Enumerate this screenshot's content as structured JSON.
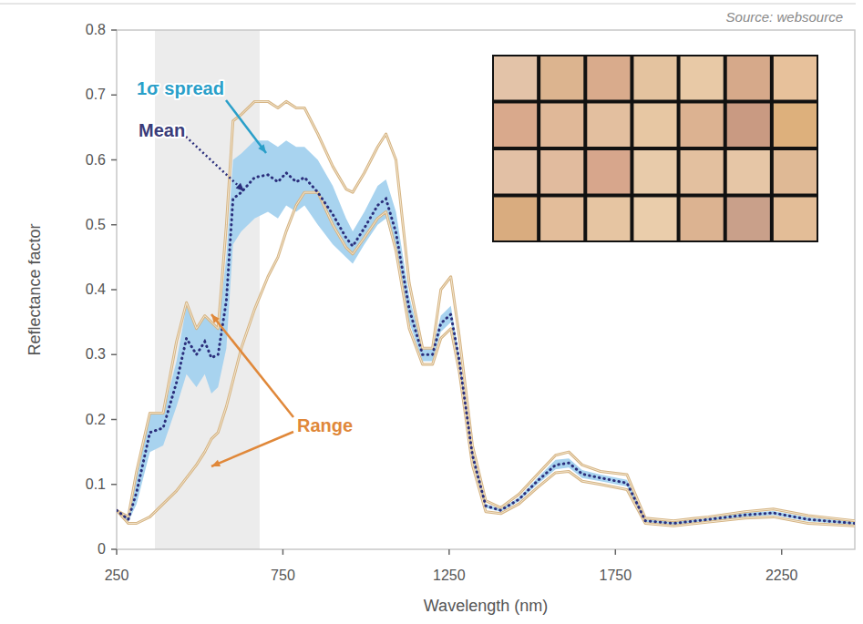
{
  "chart_data": {
    "type": "line",
    "source": "Source: websource",
    "x_label": "Wavelength (nm)",
    "y_label": "Reflectance factor",
    "xlim": [
      250,
      2470
    ],
    "ylim": [
      0,
      0.8
    ],
    "xticks": [
      250,
      750,
      1250,
      1750,
      2250
    ],
    "yticks": [
      0,
      0.1,
      0.2,
      0.3,
      0.4,
      0.5,
      0.6,
      0.7,
      0.8
    ],
    "grid": false,
    "shaded_region": [
      365,
      680
    ],
    "x": [
      250,
      285,
      310,
      350,
      390,
      430,
      460,
      490,
      515,
      535,
      555,
      580,
      600,
      625,
      665,
      705,
      735,
      760,
      790,
      815,
      855,
      900,
      940,
      960,
      995,
      1035,
      1060,
      1090,
      1130,
      1170,
      1200,
      1225,
      1255,
      1280,
      1320,
      1360,
      1405,
      1460,
      1515,
      1570,
      1610,
      1650,
      1705,
      1785,
      1840,
      1925,
      2030,
      2140,
      2225,
      2330,
      2470
    ],
    "series": [
      {
        "name": "Mean",
        "type": "line",
        "line_style": "dotted",
        "color": "#2b2f7c",
        "values": [
          0.06,
          0.046,
          0.088,
          0.18,
          0.187,
          0.257,
          0.325,
          0.3,
          0.32,
          0.295,
          0.3,
          0.383,
          0.54,
          0.55,
          0.573,
          0.577,
          0.566,
          0.58,
          0.566,
          0.573,
          0.55,
          0.516,
          0.48,
          0.467,
          0.495,
          0.53,
          0.54,
          0.488,
          0.37,
          0.3,
          0.3,
          0.348,
          0.362,
          0.292,
          0.145,
          0.067,
          0.06,
          0.077,
          0.105,
          0.13,
          0.133,
          0.116,
          0.11,
          0.102,
          0.044,
          0.04,
          0.046,
          0.053,
          0.056,
          0.046,
          0.04
        ]
      },
      {
        "name": "1σ spread",
        "type": "area",
        "color": "#a8d3ef",
        "upper": [
          0.06,
          0.05,
          0.11,
          0.21,
          0.21,
          0.29,
          0.375,
          0.34,
          0.36,
          0.35,
          0.34,
          0.45,
          0.6,
          0.61,
          0.63,
          0.63,
          0.62,
          0.63,
          0.62,
          0.62,
          0.6,
          0.56,
          0.51,
          0.49,
          0.52,
          0.56,
          0.57,
          0.52,
          0.39,
          0.31,
          0.31,
          0.36,
          0.375,
          0.3,
          0.15,
          0.07,
          0.062,
          0.08,
          0.11,
          0.138,
          0.14,
          0.122,
          0.115,
          0.107,
          0.046,
          0.042,
          0.048,
          0.056,
          0.059,
          0.049,
          0.042
        ],
        "lower": [
          0.06,
          0.042,
          0.07,
          0.15,
          0.16,
          0.22,
          0.27,
          0.25,
          0.27,
          0.24,
          0.25,
          0.31,
          0.47,
          0.49,
          0.51,
          0.52,
          0.51,
          0.53,
          0.52,
          0.53,
          0.5,
          0.47,
          0.45,
          0.44,
          0.47,
          0.5,
          0.51,
          0.46,
          0.35,
          0.29,
          0.29,
          0.335,
          0.35,
          0.285,
          0.14,
          0.064,
          0.058,
          0.074,
          0.1,
          0.123,
          0.126,
          0.11,
          0.105,
          0.097,
          0.042,
          0.038,
          0.044,
          0.05,
          0.053,
          0.043,
          0.038
        ]
      },
      {
        "name": "Range",
        "type": "range",
        "color": "#d6b585",
        "upper": [
          0.06,
          0.05,
          0.12,
          0.21,
          0.21,
          0.32,
          0.38,
          0.34,
          0.36,
          0.35,
          0.34,
          0.5,
          0.66,
          0.67,
          0.69,
          0.69,
          0.68,
          0.69,
          0.68,
          0.68,
          0.64,
          0.59,
          0.555,
          0.55,
          0.58,
          0.62,
          0.64,
          0.6,
          0.41,
          0.31,
          0.31,
          0.4,
          0.42,
          0.33,
          0.16,
          0.075,
          0.064,
          0.085,
          0.115,
          0.145,
          0.15,
          0.13,
          0.12,
          0.115,
          0.048,
          0.044,
          0.05,
          0.058,
          0.062,
          0.052,
          0.044
        ],
        "lower": [
          0.06,
          0.04,
          0.04,
          0.05,
          0.07,
          0.09,
          0.11,
          0.13,
          0.15,
          0.17,
          0.18,
          0.22,
          0.26,
          0.31,
          0.37,
          0.42,
          0.45,
          0.49,
          0.53,
          0.55,
          0.55,
          0.5,
          0.465,
          0.455,
          0.48,
          0.51,
          0.52,
          0.46,
          0.34,
          0.285,
          0.285,
          0.325,
          0.34,
          0.275,
          0.13,
          0.058,
          0.055,
          0.07,
          0.095,
          0.118,
          0.12,
          0.105,
          0.1,
          0.092,
          0.04,
          0.036,
          0.042,
          0.048,
          0.05,
          0.04,
          0.036
        ]
      }
    ]
  }
}
